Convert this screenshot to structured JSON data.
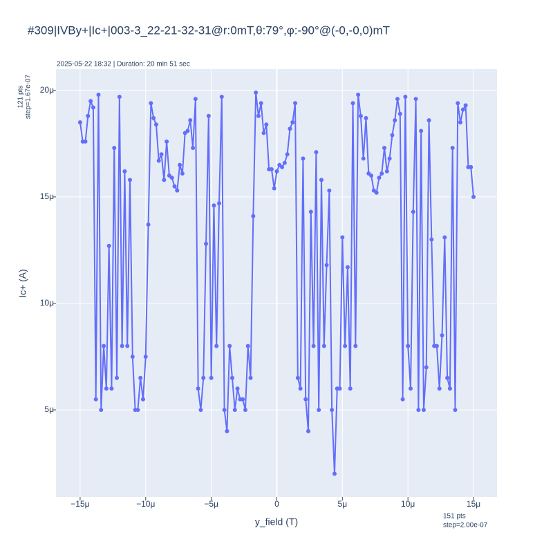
{
  "chart_data": {
    "type": "line",
    "title": "#309|IVBy+|Ic+|003-3_22-21-32-31@r:0mT,θ:79°,φ:-90°@(-0,-0,0)mT",
    "x_label": "y_field (T)",
    "y_label": "Ic+ (A)",
    "annotations": [
      {
        "lines": [
          "2025-05-22 18:32 | Duration: 20 min 51 sec"
        ]
      },
      {
        "lines": [
          "121 pts",
          "step=1.67e-07"
        ]
      },
      {
        "lines": [
          "151 pts",
          "step=2.00e-07"
        ]
      }
    ],
    "xlim": [
      -1.684e-05,
      1.679e-05
    ],
    "ylim": [
      9.1e-07,
      2.1e-05
    ],
    "xticks": [
      {
        "value": -1.5e-05,
        "label": "−15μ"
      },
      {
        "value": -1e-05,
        "label": "−10μ"
      },
      {
        "value": -5e-06,
        "label": "−5μ"
      },
      0,
      {
        "value": 5e-06,
        "label": "5μ"
      },
      {
        "value": 1e-05,
        "label": "10μ"
      },
      {
        "value": 1.5e-05,
        "label": "15μ"
      }
    ],
    "yticks": [
      {
        "value": 5e-06,
        "label": "5μ"
      },
      {
        "value": 1e-05,
        "label": "10μ"
      },
      {
        "value": 1.5e-05,
        "label": "15μ"
      },
      {
        "value": 2e-05,
        "label": "20μ"
      }
    ],
    "grid": true,
    "series": [
      {
        "color": "#636efa",
        "x": [
          -1.5e-05,
          -1.48e-05,
          -1.46e-05,
          -1.44e-05,
          -1.42e-05,
          -1.4e-05,
          -1.38e-05,
          -1.36e-05,
          -1.34e-05,
          -1.32e-05,
          -1.3e-05,
          -1.28e-05,
          -1.26e-05,
          -1.24e-05,
          -1.22e-05,
          -1.2e-05,
          -1.18e-05,
          -1.16e-05,
          -1.14e-05,
          -1.12e-05,
          -1.1e-05,
          -1.08e-05,
          -1.06e-05,
          -1.04e-05,
          -1.02e-05,
          -1e-05,
          -9.8e-06,
          -9.6e-06,
          -9.4e-06,
          -9.2e-06,
          -9e-06,
          -8.8e-06,
          -8.6e-06,
          -8.4e-06,
          -8.2e-06,
          -8e-06,
          -7.8e-06,
          -7.6e-06,
          -7.4e-06,
          -7.2e-06,
          -7e-06,
          -6.8e-06,
          -6.6e-06,
          -6.4e-06,
          -6.2e-06,
          -6e-06,
          -5.8e-06,
          -5.6e-06,
          -5.4e-06,
          -5.2e-06,
          -5e-06,
          -4.8e-06,
          -4.6e-06,
          -4.4e-06,
          -4.2e-06,
          -4e-06,
          -3.8e-06,
          -3.6e-06,
          -3.4e-06,
          -3.2e-06,
          -3e-06,
          -2.8e-06,
          -2.6e-06,
          -2.4e-06,
          -2.2e-06,
          -2e-06,
          -1.8e-06,
          -1.6e-06,
          -1.4e-06,
          -1.2e-06,
          -1e-06,
          -8e-07,
          -6e-07,
          -4e-07,
          -2e-07,
          0,
          2e-07,
          4e-07,
          6e-07,
          8e-07,
          1e-06,
          1.2e-06,
          1.4e-06,
          1.6e-06,
          1.8e-06,
          2e-06,
          2.2e-06,
          2.4e-06,
          2.6e-06,
          2.8e-06,
          3e-06,
          3.2e-06,
          3.4e-06,
          3.6e-06,
          3.8e-06,
          4e-06,
          4.2e-06,
          4.4e-06,
          4.6e-06,
          4.8e-06,
          5e-06,
          5.2e-06,
          5.4e-06,
          5.6e-06,
          5.8e-06,
          6e-06,
          6.2e-06,
          6.4e-06,
          6.6e-06,
          6.8e-06,
          7e-06,
          7.2e-06,
          7.4e-06,
          7.6e-06,
          7.8e-06,
          8e-06,
          8.2e-06,
          8.4e-06,
          8.6e-06,
          8.8e-06,
          9e-06,
          9.2e-06,
          9.4e-06,
          9.6e-06,
          9.8e-06,
          1e-05,
          1.02e-05,
          1.04e-05,
          1.06e-05,
          1.08e-05,
          1.1e-05,
          1.12e-05,
          1.14e-05,
          1.16e-05,
          1.18e-05,
          1.2e-05,
          1.22e-05,
          1.24e-05,
          1.26e-05,
          1.28e-05,
          1.3e-05,
          1.32e-05,
          1.34e-05,
          1.36e-05,
          1.38e-05,
          1.4e-05,
          1.42e-05,
          1.44e-05,
          1.46e-05,
          1.48e-05,
          1.5e-05
        ],
        "values": [
          1.85e-05,
          1.76e-05,
          1.76e-05,
          1.88e-05,
          1.95e-05,
          1.92e-05,
          5.5e-06,
          1.98e-05,
          5e-06,
          8e-06,
          6e-06,
          1.27e-05,
          6e-06,
          1.73e-05,
          6.5e-06,
          1.97e-05,
          8e-06,
          1.62e-05,
          8e-06,
          1.58e-05,
          7.5e-06,
          5e-06,
          5e-06,
          6.5e-06,
          5.5e-06,
          7.5e-06,
          1.37e-05,
          1.94e-05,
          1.87e-05,
          1.84e-05,
          1.67e-05,
          1.7e-05,
          1.58e-05,
          1.76e-05,
          1.6e-05,
          1.59e-05,
          1.55e-05,
          1.53e-05,
          1.65e-05,
          1.61e-05,
          1.8e-05,
          1.81e-05,
          1.86e-05,
          1.73e-05,
          1.96e-05,
          6e-06,
          5e-06,
          6.5e-06,
          1.28e-05,
          1.88e-05,
          6.5e-06,
          1.46e-05,
          8e-06,
          1.47e-05,
          1.97e-05,
          5e-06,
          4e-06,
          8e-06,
          6.5e-06,
          5e-06,
          6e-06,
          5.5e-06,
          5.5e-06,
          5e-06,
          8e-06,
          6.5e-06,
          1.41e-05,
          1.99e-05,
          1.88e-05,
          1.94e-05,
          1.8e-05,
          1.84e-05,
          1.63e-05,
          1.63e-05,
          1.54e-05,
          1.62e-05,
          1.65e-05,
          1.64e-05,
          1.66e-05,
          1.7e-05,
          1.82e-05,
          1.85e-05,
          1.94e-05,
          6.5e-06,
          6e-06,
          1.68e-05,
          5.5e-06,
          4e-06,
          1.43e-05,
          8e-06,
          1.71e-05,
          5e-06,
          1.58e-05,
          8e-06,
          1.18e-05,
          1.53e-05,
          5e-06,
          2e-06,
          6e-06,
          6e-06,
          1.31e-05,
          8e-06,
          1.17e-05,
          6e-06,
          1.94e-05,
          8e-06,
          1.98e-05,
          1.88e-05,
          1.68e-05,
          1.87e-05,
          1.61e-05,
          1.6e-05,
          1.53e-05,
          1.52e-05,
          1.59e-05,
          1.61e-05,
          1.73e-05,
          1.62e-05,
          1.68e-05,
          1.79e-05,
          1.86e-05,
          1.96e-05,
          1.89e-05,
          5.5e-06,
          1.97e-05,
          8e-06,
          6e-06,
          1.43e-05,
          1.96e-05,
          5e-06,
          1.81e-05,
          5e-06,
          7e-06,
          1.86e-05,
          1.3e-05,
          8e-06,
          8e-06,
          6e-06,
          8.5e-06,
          1.31e-05,
          6.5e-06,
          6e-06,
          1.73e-05,
          5e-06,
          1.94e-05,
          1.85e-05,
          1.91e-05,
          1.93e-05,
          1.64e-05,
          1.64e-05,
          1.5e-05
        ]
      }
    ]
  }
}
